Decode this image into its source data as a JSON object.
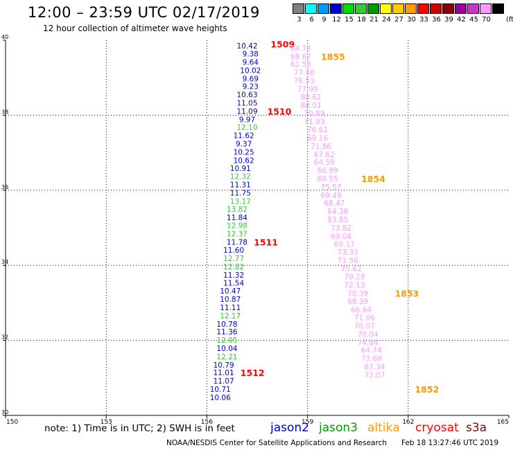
{
  "header": {
    "title": "12:00 – 23:59 UTC 02/17/2019",
    "subtitle": "12 hour collection of altimeter wave heights"
  },
  "legend": {
    "unit": "(ft)",
    "items": [
      {
        "label": "3",
        "color": "#808080"
      },
      {
        "label": "6",
        "color": "#00ffff"
      },
      {
        "label": "9",
        "color": "#0099ff"
      },
      {
        "label": "12",
        "color": "#0000cc"
      },
      {
        "label": "15",
        "color": "#00dd00"
      },
      {
        "label": "18",
        "color": "#33cc33"
      },
      {
        "label": "21",
        "color": "#009900"
      },
      {
        "label": "24",
        "color": "#ffff00"
      },
      {
        "label": "27",
        "color": "#ffcc00"
      },
      {
        "label": "30",
        "color": "#ff9900"
      },
      {
        "label": "33",
        "color": "#ff0000"
      },
      {
        "label": "36",
        "color": "#cc0000"
      },
      {
        "label": "39",
        "color": "#880000"
      },
      {
        "label": "42",
        "color": "#990099"
      },
      {
        "label": "45",
        "color": "#cc33cc"
      },
      {
        "label": "70",
        "color": "#ff99ff"
      },
      {
        "label": "",
        "color": "#000000"
      }
    ]
  },
  "footer": {
    "note": "note:  1) Time is in UTC;  2) SWH is in feet",
    "satellites": [
      {
        "name": "jason2",
        "color": "#0000cc"
      },
      {
        "name": "jason3",
        "color": "#009900"
      },
      {
        "name": "altika",
        "color": "#ff9900"
      },
      {
        "name": "cryosat",
        "color": "#ff0000"
      },
      {
        "name": "s3a",
        "color": "#880000"
      }
    ],
    "credit": "NOAA/NESDIS Center for Satellite Applications and Research",
    "timestamp": "Feb 18 13:27:46 UTC 2019"
  },
  "chart_data": {
    "type": "scatter",
    "xlim": [
      150,
      165
    ],
    "ylim": [
      30,
      40
    ],
    "x_ticks": [
      "150",
      "153",
      "156",
      "159",
      "162",
      "165"
    ],
    "y_ticks": [
      "30",
      "32",
      "34",
      "36",
      "38",
      "40"
    ],
    "grid": true,
    "series": [
      {
        "name": "cryosat",
        "color": "#ff0000",
        "points": [
          {
            "x": 157.2,
            "y": 39.85,
            "v": "10.42",
            "c": "#0000cc"
          },
          {
            "x": 157.3,
            "y": 39.64,
            "v": "9.38",
            "c": "#0000cc"
          },
          {
            "x": 157.3,
            "y": 39.42,
            "v": "9.64",
            "c": "#0000cc"
          },
          {
            "x": 157.3,
            "y": 39.2,
            "v": "10.02",
            "c": "#0000cc"
          },
          {
            "x": 157.3,
            "y": 38.98,
            "v": "9.69",
            "c": "#0000cc"
          },
          {
            "x": 157.3,
            "y": 38.77,
            "v": "9.23",
            "c": "#0000cc"
          },
          {
            "x": 157.2,
            "y": 38.55,
            "v": "10.63",
            "c": "#0000cc"
          },
          {
            "x": 157.2,
            "y": 38.33,
            "v": "11.05",
            "c": "#0000cc"
          },
          {
            "x": 157.2,
            "y": 38.11,
            "v": "11.09",
            "c": "#0000cc"
          },
          {
            "x": 157.2,
            "y": 37.89,
            "v": "9.97",
            "c": "#0000cc"
          },
          {
            "x": 157.2,
            "y": 37.68,
            "v": "12.10",
            "c": "#33cc33"
          },
          {
            "x": 157.1,
            "y": 37.46,
            "v": "11.62",
            "c": "#0000cc"
          },
          {
            "x": 157.1,
            "y": 37.24,
            "v": "9.37",
            "c": "#0000cc"
          },
          {
            "x": 157.1,
            "y": 37.02,
            "v": "10.25",
            "c": "#0000cc"
          },
          {
            "x": 157.1,
            "y": 36.8,
            "v": "10.62",
            "c": "#0000cc"
          },
          {
            "x": 157.0,
            "y": 36.59,
            "v": "10.91",
            "c": "#0000cc"
          },
          {
            "x": 157.0,
            "y": 36.37,
            "v": "12.32",
            "c": "#33cc33"
          },
          {
            "x": 157.0,
            "y": 36.15,
            "v": "11.31",
            "c": "#0000cc"
          },
          {
            "x": 157.0,
            "y": 35.93,
            "v": "11.75",
            "c": "#0000cc"
          },
          {
            "x": 157.0,
            "y": 35.71,
            "v": "13.17",
            "c": "#33cc33"
          },
          {
            "x": 156.9,
            "y": 35.5,
            "v": "13.82",
            "c": "#33cc33"
          },
          {
            "x": 156.9,
            "y": 35.28,
            "v": "11.84",
            "c": "#0000cc"
          },
          {
            "x": 156.9,
            "y": 35.06,
            "v": "12.98",
            "c": "#33cc33"
          },
          {
            "x": 156.9,
            "y": 34.84,
            "v": "12.37",
            "c": "#33cc33"
          },
          {
            "x": 156.9,
            "y": 34.62,
            "v": "11.78",
            "c": "#0000cc"
          },
          {
            "x": 156.8,
            "y": 34.41,
            "v": "11.60",
            "c": "#0000cc"
          },
          {
            "x": 156.8,
            "y": 34.19,
            "v": "12.77",
            "c": "#33cc33"
          },
          {
            "x": 156.8,
            "y": 33.97,
            "v": "12.82",
            "c": "#33cc33"
          },
          {
            "x": 156.8,
            "y": 33.75,
            "v": "11.32",
            "c": "#0000cc"
          },
          {
            "x": 156.8,
            "y": 33.53,
            "v": "11.54",
            "c": "#0000cc"
          },
          {
            "x": 156.7,
            "y": 33.32,
            "v": "10.47",
            "c": "#0000cc"
          },
          {
            "x": 156.7,
            "y": 33.1,
            "v": "10.87",
            "c": "#0000cc"
          },
          {
            "x": 156.7,
            "y": 32.88,
            "v": "11.11",
            "c": "#0000cc"
          },
          {
            "x": 156.7,
            "y": 32.66,
            "v": "12.17",
            "c": "#33cc33"
          },
          {
            "x": 156.6,
            "y": 32.44,
            "v": "10.78",
            "c": "#0000cc"
          },
          {
            "x": 156.6,
            "y": 32.23,
            "v": "11.36",
            "c": "#0000cc"
          },
          {
            "x": 156.6,
            "y": 32.01,
            "v": "12.05",
            "c": "#33cc33"
          },
          {
            "x": 156.6,
            "y": 31.79,
            "v": "10.04",
            "c": "#0000cc"
          },
          {
            "x": 156.6,
            "y": 31.57,
            "v": "12.21",
            "c": "#33cc33"
          },
          {
            "x": 156.5,
            "y": 31.35,
            "v": "10.79",
            "c": "#0000cc"
          },
          {
            "x": 156.5,
            "y": 31.14,
            "v": "11.01",
            "c": "#0000cc"
          },
          {
            "x": 156.5,
            "y": 30.92,
            "v": "11.07",
            "c": "#0000cc"
          },
          {
            "x": 156.4,
            "y": 30.7,
            "v": "10.71",
            "c": "#0000cc"
          },
          {
            "x": 156.4,
            "y": 30.48,
            "v": "10.06",
            "c": "#0000cc"
          }
        ],
        "time_labels": [
          {
            "text": "1509",
            "x": 157.9,
            "y": 39.9
          },
          {
            "text": "1510",
            "x": 157.8,
            "y": 38.11
          },
          {
            "text": "1511",
            "x": 157.4,
            "y": 34.62
          },
          {
            "text": "1512",
            "x": 157.0,
            "y": 31.14
          }
        ]
      },
      {
        "name": "altika",
        "color": "#ff9900",
        "points": [
          {
            "x": 158.8,
            "y": 39.79,
            "v": "64.75",
            "c": "#ff99ff"
          },
          {
            "x": 158.8,
            "y": 39.57,
            "v": "68.67",
            "c": "#ff99ff"
          },
          {
            "x": 158.8,
            "y": 39.36,
            "v": "61.58",
            "c": "#ff99ff"
          },
          {
            "x": 158.9,
            "y": 39.14,
            "v": "77.40",
            "c": "#ff99ff"
          },
          {
            "x": 158.9,
            "y": 38.92,
            "v": "76.53",
            "c": "#ff99ff"
          },
          {
            "x": 159.0,
            "y": 38.7,
            "v": "77.99",
            "c": "#ff99ff"
          },
          {
            "x": 159.1,
            "y": 38.49,
            "v": "80.62",
            "c": "#ff99ff"
          },
          {
            "x": 159.1,
            "y": 38.27,
            "v": "88.01",
            "c": "#ff99ff"
          },
          {
            "x": 159.2,
            "y": 38.05,
            "v": "70.89",
            "c": "#ff99ff"
          },
          {
            "x": 159.2,
            "y": 37.83,
            "v": "71.93",
            "c": "#ff99ff"
          },
          {
            "x": 159.3,
            "y": 37.62,
            "v": "76.61",
            "c": "#ff99ff"
          },
          {
            "x": 159.3,
            "y": 37.4,
            "v": "69.16",
            "c": "#ff99ff"
          },
          {
            "x": 159.4,
            "y": 37.18,
            "v": "71.86",
            "c": "#ff99ff"
          },
          {
            "x": 159.5,
            "y": 36.96,
            "v": "67.62",
            "c": "#ff99ff"
          },
          {
            "x": 159.5,
            "y": 36.75,
            "v": "64.59",
            "c": "#ff99ff"
          },
          {
            "x": 159.6,
            "y": 36.53,
            "v": "66.99",
            "c": "#ff99ff"
          },
          {
            "x": 159.6,
            "y": 36.31,
            "v": "68.55",
            "c": "#ff99ff"
          },
          {
            "x": 159.7,
            "y": 36.09,
            "v": "75.57",
            "c": "#ff99ff"
          },
          {
            "x": 159.7,
            "y": 35.87,
            "v": "69.49",
            "c": "#ff99ff"
          },
          {
            "x": 159.8,
            "y": 35.66,
            "v": "68.47",
            "c": "#ff99ff"
          },
          {
            "x": 159.9,
            "y": 35.44,
            "v": "64.38",
            "c": "#ff99ff"
          },
          {
            "x": 159.9,
            "y": 35.22,
            "v": "83.85",
            "c": "#ff99ff"
          },
          {
            "x": 160.0,
            "y": 35.0,
            "v": "73.82",
            "c": "#ff99ff"
          },
          {
            "x": 160.0,
            "y": 34.78,
            "v": "69.04",
            "c": "#ff99ff"
          },
          {
            "x": 160.1,
            "y": 34.57,
            "v": "69.17",
            "c": "#ff99ff"
          },
          {
            "x": 160.2,
            "y": 34.35,
            "v": "73.33",
            "c": "#ff99ff"
          },
          {
            "x": 160.2,
            "y": 34.13,
            "v": "71.56",
            "c": "#ff99ff"
          },
          {
            "x": 160.3,
            "y": 33.91,
            "v": "70.62",
            "c": "#ff99ff"
          },
          {
            "x": 160.4,
            "y": 33.7,
            "v": "70.28",
            "c": "#ff99ff"
          },
          {
            "x": 160.4,
            "y": 33.48,
            "v": "72.13",
            "c": "#ff99ff"
          },
          {
            "x": 160.5,
            "y": 33.26,
            "v": "70.39",
            "c": "#ff99ff"
          },
          {
            "x": 160.5,
            "y": 33.04,
            "v": "68.39",
            "c": "#ff99ff"
          },
          {
            "x": 160.6,
            "y": 32.82,
            "v": "66.64",
            "c": "#ff99ff"
          },
          {
            "x": 160.7,
            "y": 32.61,
            "v": "71.06",
            "c": "#ff99ff"
          },
          {
            "x": 160.7,
            "y": 32.39,
            "v": "70.07",
            "c": "#ff99ff"
          },
          {
            "x": 160.8,
            "y": 32.17,
            "v": "70.04",
            "c": "#ff99ff"
          },
          {
            "x": 160.8,
            "y": 31.95,
            "v": "74.84",
            "c": "#ff99ff"
          },
          {
            "x": 160.9,
            "y": 31.74,
            "v": "64.74",
            "c": "#ff99ff"
          },
          {
            "x": 160.9,
            "y": 31.52,
            "v": "73.69",
            "c": "#ff99ff"
          },
          {
            "x": 161.0,
            "y": 31.3,
            "v": "67.34",
            "c": "#ff99ff"
          },
          {
            "x": 161.0,
            "y": 31.08,
            "v": "72.07",
            "c": "#ff99ff"
          }
        ],
        "time_labels": [
          {
            "text": "1855",
            "x": 159.4,
            "y": 39.57
          },
          {
            "text": "1854",
            "x": 160.6,
            "y": 36.31
          },
          {
            "text": "1853",
            "x": 161.6,
            "y": 33.26
          },
          {
            "text": "1852",
            "x": 162.2,
            "y": 30.7
          }
        ]
      }
    ]
  }
}
